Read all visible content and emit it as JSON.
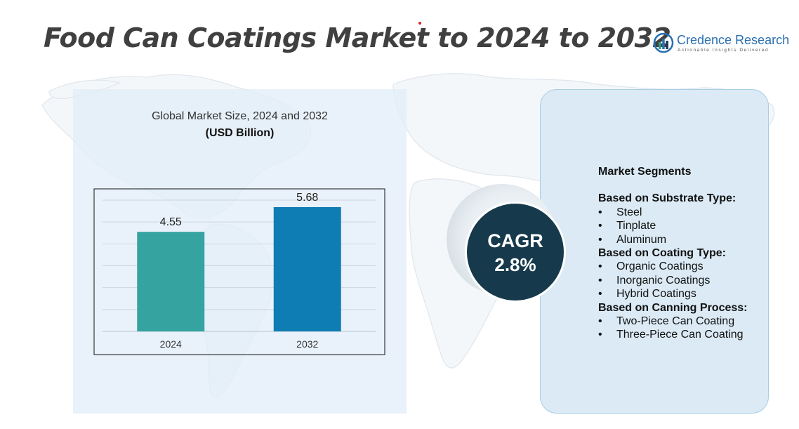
{
  "header": {
    "title": "Food Can Coatings Market to 2024 to 2032"
  },
  "logo": {
    "name": "Credence Research",
    "tagline": "Actionable Insights Delivered",
    "icon": "bar-chart-logo-icon",
    "color": "#2a6fb0"
  },
  "chart_data": {
    "type": "bar",
    "title": "Global Market Size, 2024 and 2032",
    "subtitle": "(USD Billion)",
    "categories": [
      "2024",
      "2032"
    ],
    "values": [
      4.55,
      5.68
    ],
    "value_labels": [
      "4.55",
      "5.68"
    ],
    "colors": [
      "#35a3a0",
      "#0d7db3"
    ],
    "ylim": [
      0,
      6
    ],
    "grid": true,
    "legend": "none"
  },
  "cagr": {
    "label": "CAGR",
    "value": "2.8%",
    "color": "#163a4c"
  },
  "segments": {
    "heading": "Market Segments",
    "groups": [
      {
        "title": "Based on Substrate Type:",
        "items": [
          "Steel",
          "Tinplate",
          "Aluminum"
        ]
      },
      {
        "title": "Based on Coating Type:",
        "items": [
          "Organic Coatings",
          "Inorganic Coatings",
          "Hybrid Coatings"
        ]
      },
      {
        "title": "Based on Canning Process:",
        "items": [
          "Two-Piece Can Coating",
          "Three-Piece Can Coating"
        ]
      }
    ]
  }
}
